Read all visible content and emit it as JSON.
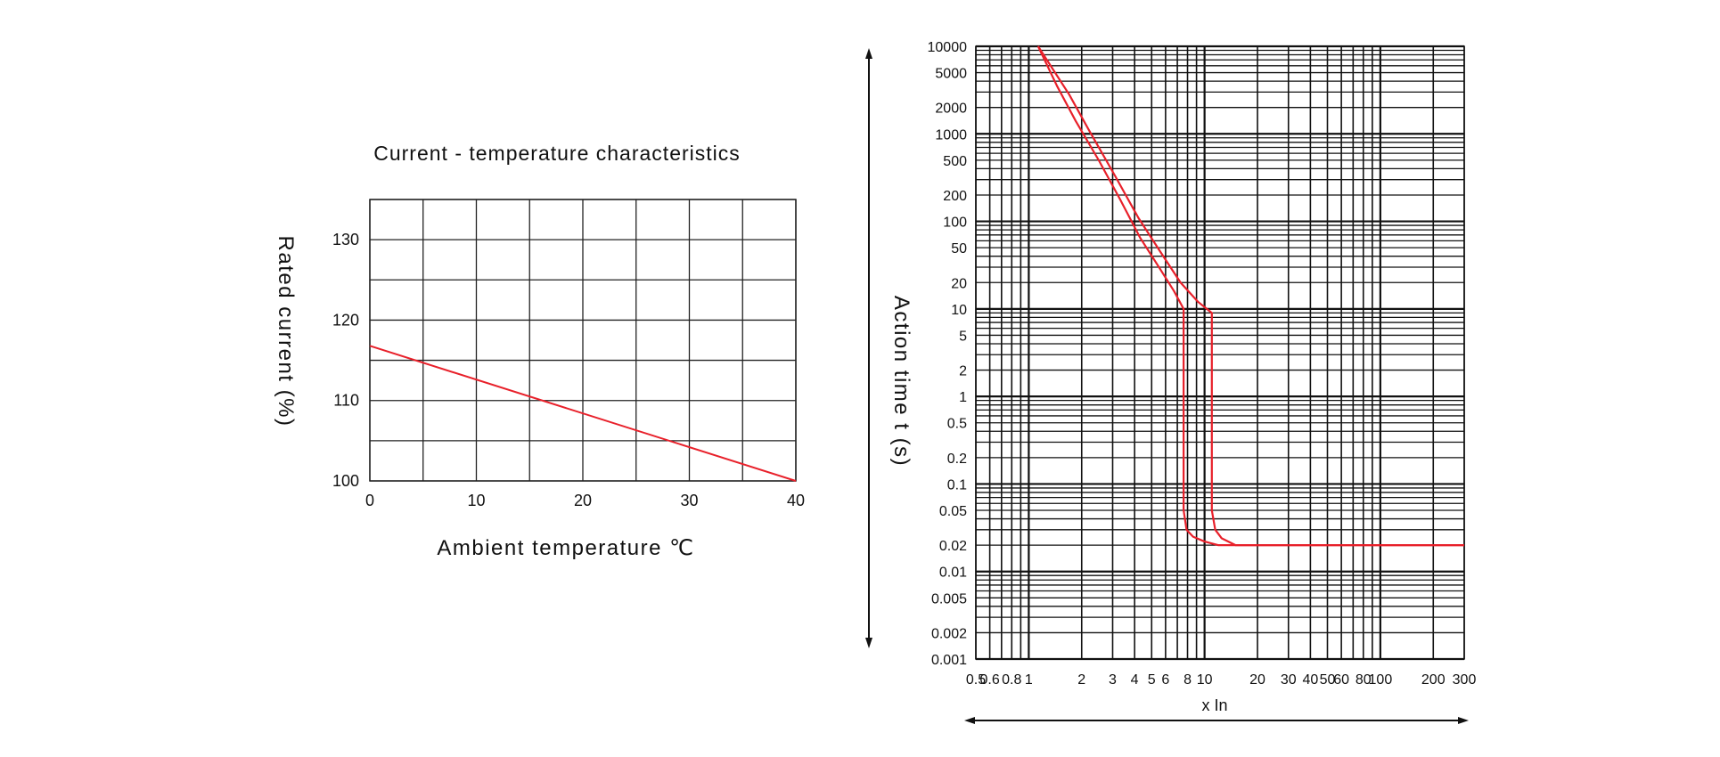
{
  "chart_data": [
    {
      "type": "line",
      "title": "Current - temperature characteristics",
      "xlabel": "Ambient temperature ℃",
      "ylabel": "Rated current (%)",
      "xlim": [
        0,
        40
      ],
      "ylim": [
        100,
        135
      ],
      "x_ticks": [
        "0",
        "10",
        "20",
        "30",
        "40"
      ],
      "y_ticks": [
        "100",
        "110",
        "120",
        "130"
      ],
      "grid": true,
      "series": [
        {
          "x": [
            0,
            40
          ],
          "y": [
            116.8,
            100
          ]
        }
      ],
      "colors": {
        "line": "#e8202a",
        "grid": "#222222"
      }
    },
    {
      "type": "line",
      "title": "",
      "xlabel": "x In",
      "ylabel": "Action time t (s)",
      "x_scale": "log",
      "y_scale": "log",
      "xlim": [
        0.5,
        300
      ],
      "ylim": [
        0.001,
        10000
      ],
      "x_ticks": [
        "0.5",
        "0.6",
        "0.8",
        "1",
        "2",
        "3",
        "4",
        "5",
        "6",
        "8",
        "10",
        "20",
        "30",
        "40",
        "50",
        "60",
        "80",
        "100",
        "200",
        "300"
      ],
      "y_ticks": [
        "10000",
        "5000",
        "2000",
        "1000",
        "500",
        "200",
        "100",
        "50",
        "20",
        "10",
        "5",
        "2",
        "1",
        "0.5",
        "0.2",
        "0.1",
        "0.05",
        "0.02",
        "0.01",
        "0.005",
        "0.002",
        "0.001"
      ],
      "grid": true,
      "series": [
        {
          "x": [
            1.13,
            1.45,
            1.85,
            2.5,
            3.3,
            4.3,
            5.5,
            6.7,
            7.6,
            7.6,
            7.6,
            7.9,
            8.6,
            10,
            12,
            16,
            300
          ],
          "y": [
            10000,
            3500,
            1400,
            500,
            180,
            65,
            30,
            16,
            10,
            8.5,
            0.05,
            0.03,
            0.025,
            0.022,
            0.02,
            0.02,
            0.02
          ]
        },
        {
          "x": [
            1.13,
            1.7,
            2.2,
            3.1,
            4.2,
            5.6,
            7.3,
            9.2,
            11,
            11,
            11,
            11.5,
            12.5,
            15,
            300
          ],
          "y": [
            10000,
            2800,
            1100,
            330,
            110,
            45,
            20,
            12,
            9,
            7,
            0.05,
            0.03,
            0.024,
            0.02,
            0.02
          ]
        }
      ],
      "colors": {
        "line": "#e8202a",
        "grid": "#111111"
      }
    }
  ]
}
